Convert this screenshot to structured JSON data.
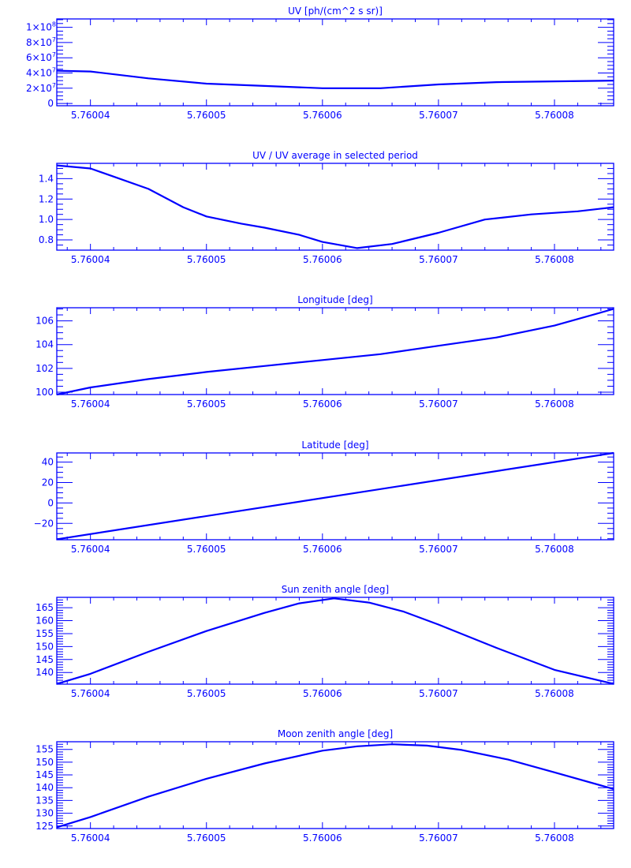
{
  "color": "#0000ff",
  "chart_data": [
    {
      "type": "line",
      "title": "UV [ph/(cm^2 s sr)]",
      "xlim": [
        5.7600371,
        5.7600851
      ],
      "ylim": [
        -3000000,
        111000000
      ],
      "xticks": [
        "5.76004",
        "5.76005",
        "5.76006",
        "5.76007",
        "5.76008"
      ],
      "xtick_values": [
        5.76004,
        5.76005,
        5.76006,
        5.76007,
        5.76008
      ],
      "yticks": [
        {
          "v": 0,
          "m": "0",
          "e": ""
        },
        {
          "v": 20000000,
          "m": "2×10",
          "e": "7"
        },
        {
          "v": 40000000,
          "m": "4×10",
          "e": "7"
        },
        {
          "v": 60000000,
          "m": "6×10",
          "e": "7"
        },
        {
          "v": 80000000,
          "m": "8×10",
          "e": "7"
        },
        {
          "v": 100000000,
          "m": "1×10",
          "e": "8"
        }
      ],
      "yminor": 5000000,
      "x": [
        5.7600371,
        5.76004,
        5.760045,
        5.76005,
        5.760055,
        5.76006,
        5.760065,
        5.76007,
        5.760075,
        5.76008,
        5.7600851
      ],
      "y": [
        43000000,
        42000000,
        33000000,
        26000000,
        23000000,
        20000000,
        20000000,
        25000000,
        28000000,
        29000000,
        30000000
      ]
    },
    {
      "type": "line",
      "title": "UV / UV average in selected period",
      "xlim": [
        5.7600371,
        5.7600851
      ],
      "ylim": [
        0.7,
        1.55
      ],
      "xticks": [
        "5.76004",
        "5.76005",
        "5.76006",
        "5.76007",
        "5.76008"
      ],
      "xtick_values": [
        5.76004,
        5.76005,
        5.76006,
        5.76007,
        5.76008
      ],
      "yticks": [
        {
          "v": 0.8,
          "m": "0.8",
          "e": ""
        },
        {
          "v": 1.0,
          "m": "1.0",
          "e": ""
        },
        {
          "v": 1.2,
          "m": "1.2",
          "e": ""
        },
        {
          "v": 1.4,
          "m": "1.4",
          "e": ""
        }
      ],
      "yminor": 0.05,
      "x": [
        5.7600371,
        5.76004,
        5.760042,
        5.760045,
        5.760048,
        5.76005,
        5.760053,
        5.760055,
        5.760058,
        5.76006,
        5.760063,
        5.760066,
        5.76007,
        5.760074,
        5.760078,
        5.760082,
        5.7600851
      ],
      "y": [
        1.53,
        1.5,
        1.42,
        1.3,
        1.12,
        1.03,
        0.96,
        0.92,
        0.85,
        0.78,
        0.72,
        0.76,
        0.87,
        1.0,
        1.05,
        1.08,
        1.12
      ]
    },
    {
      "type": "line",
      "title": "Longitude [deg]",
      "xlim": [
        5.7600371,
        5.7600851
      ],
      "ylim": [
        99.8,
        107.1
      ],
      "xticks": [
        "5.76004",
        "5.76005",
        "5.76006",
        "5.76007",
        "5.76008"
      ],
      "xtick_values": [
        5.76004,
        5.76005,
        5.76006,
        5.76007,
        5.76008
      ],
      "yticks": [
        {
          "v": 100,
          "m": "100",
          "e": ""
        },
        {
          "v": 102,
          "m": "102",
          "e": ""
        },
        {
          "v": 104,
          "m": "104",
          "e": ""
        },
        {
          "v": 106,
          "m": "106",
          "e": ""
        }
      ],
      "yminor": 0.5,
      "x": [
        5.7600371,
        5.76004,
        5.760045,
        5.76005,
        5.760055,
        5.76006,
        5.760065,
        5.76007,
        5.760075,
        5.76008,
        5.7600851
      ],
      "y": [
        99.8,
        100.4,
        101.1,
        101.7,
        102.2,
        102.7,
        103.2,
        103.9,
        104.6,
        105.6,
        107.0
      ]
    },
    {
      "type": "line",
      "title": "Latitude [deg]",
      "xlim": [
        5.7600371,
        5.7600851
      ],
      "ylim": [
        -36,
        49
      ],
      "xticks": [
        "5.76004",
        "5.76005",
        "5.76006",
        "5.76007",
        "5.76008"
      ],
      "xtick_values": [
        5.76004,
        5.76005,
        5.76006,
        5.76007,
        5.76008
      ],
      "yticks": [
        {
          "v": -20,
          "m": "−20",
          "e": ""
        },
        {
          "v": 0,
          "m": "0",
          "e": ""
        },
        {
          "v": 20,
          "m": "20",
          "e": ""
        },
        {
          "v": 40,
          "m": "40",
          "e": ""
        }
      ],
      "yminor": 5,
      "x": [
        5.7600371,
        5.7600851
      ],
      "y": [
        -35.5,
        49
      ]
    },
    {
      "type": "line",
      "title": "Sun zenith angle [deg]",
      "xlim": [
        5.7600371,
        5.7600851
      ],
      "ylim": [
        135.5,
        169
      ],
      "xticks": [
        "5.76004",
        "5.76005",
        "5.76006",
        "5.76007",
        "5.76008"
      ],
      "xtick_values": [
        5.76004,
        5.76005,
        5.76006,
        5.76007,
        5.76008
      ],
      "yticks": [
        {
          "v": 140,
          "m": "140",
          "e": ""
        },
        {
          "v": 145,
          "m": "145",
          "e": ""
        },
        {
          "v": 150,
          "m": "150",
          "e": ""
        },
        {
          "v": 155,
          "m": "155",
          "e": ""
        },
        {
          "v": 160,
          "m": "160",
          "e": ""
        },
        {
          "v": 165,
          "m": "165",
          "e": ""
        }
      ],
      "yminor": 1,
      "x": [
        5.7600371,
        5.76004,
        5.760045,
        5.76005,
        5.760055,
        5.760058,
        5.760061,
        5.760064,
        5.760067,
        5.76007,
        5.760075,
        5.76008,
        5.7600851
      ],
      "y": [
        135.6,
        139.5,
        148,
        156,
        163,
        166.7,
        168.6,
        167,
        163.5,
        158.5,
        149.5,
        141,
        135.6
      ]
    },
    {
      "type": "line",
      "title": "Moon zenith angle [deg]",
      "xlim": [
        5.7600371,
        5.7600851
      ],
      "ylim": [
        124,
        158
      ],
      "xticks": [
        "5.76004",
        "5.76005",
        "5.76006",
        "5.76007",
        "5.76008"
      ],
      "xtick_values": [
        5.76004,
        5.76005,
        5.76006,
        5.76007,
        5.76008
      ],
      "yticks": [
        {
          "v": 125,
          "m": "125",
          "e": ""
        },
        {
          "v": 130,
          "m": "130",
          "e": ""
        },
        {
          "v": 135,
          "m": "135",
          "e": ""
        },
        {
          "v": 140,
          "m": "140",
          "e": ""
        },
        {
          "v": 145,
          "m": "145",
          "e": ""
        },
        {
          "v": 150,
          "m": "150",
          "e": ""
        },
        {
          "v": 155,
          "m": "155",
          "e": ""
        }
      ],
      "yminor": 1,
      "x": [
        5.7600371,
        5.76004,
        5.760045,
        5.76005,
        5.760055,
        5.76006,
        5.760063,
        5.760066,
        5.760069,
        5.760072,
        5.760076,
        5.76008,
        5.7600851
      ],
      "y": [
        124.5,
        128.5,
        136.5,
        143.5,
        149.5,
        154.5,
        156.2,
        157,
        156.5,
        154.8,
        151,
        146,
        139.5
      ]
    }
  ]
}
